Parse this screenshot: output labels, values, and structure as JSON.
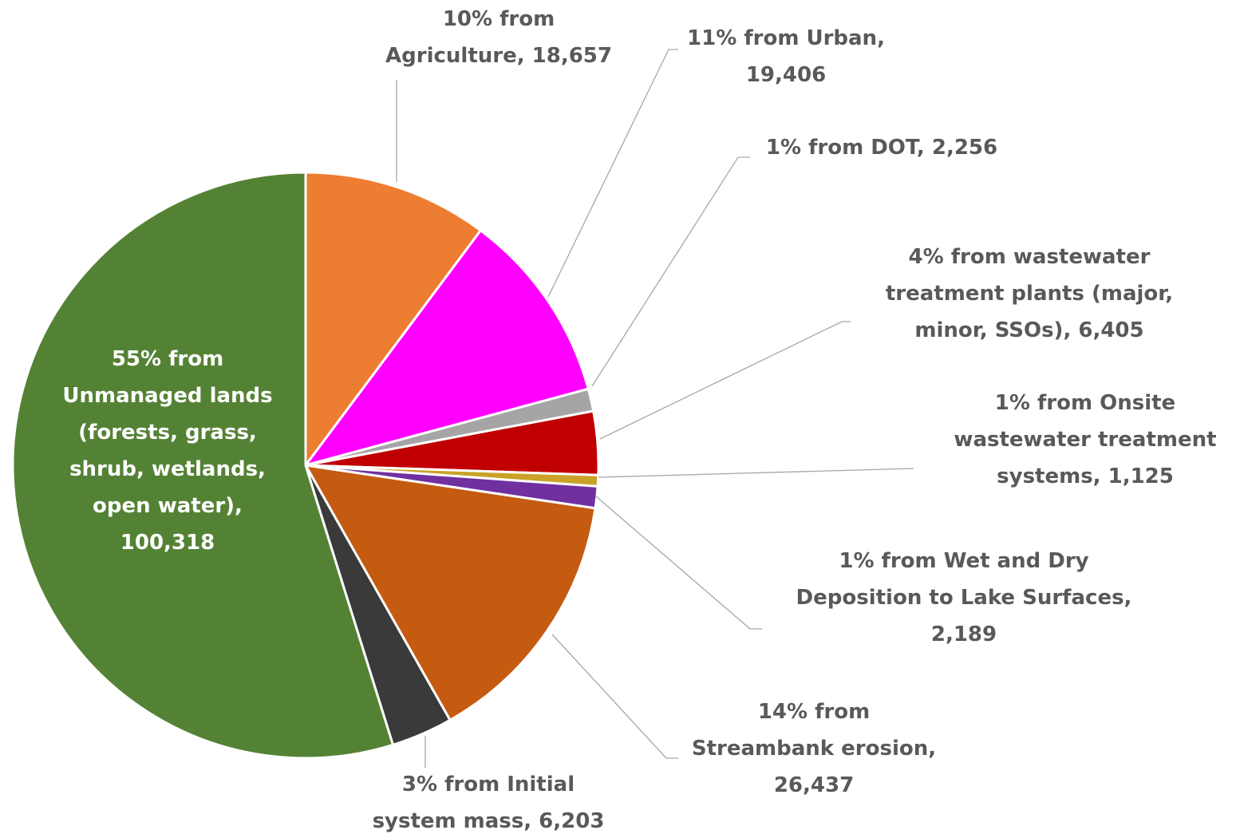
{
  "chart_data": {
    "type": "pie",
    "labels": [
      [
        "10% from",
        "Agriculture,  18,657"
      ],
      [
        "11% from Urban,",
        "19,406"
      ],
      [
        "1% from DOT,  2,256"
      ],
      [
        "4% from wastewater",
        "treatment plants (major,",
        "minor, SSOs),  6,405"
      ],
      [
        "1% from Onsite",
        "wastewater treatment",
        "systems,  1,125"
      ],
      [
        "1% from Wet and Dry",
        "Deposition to Lake Surfaces,",
        "2,189"
      ],
      [
        "14% from",
        "Streambank erosion,",
        "26,437"
      ],
      [
        "3% from Initial",
        "system mass,  6,203"
      ],
      [
        "55% from",
        "Unmanaged lands",
        "(forests, grass,",
        "shrub, wetlands,",
        "open water),",
        "100,318"
      ]
    ],
    "values": [
      18657,
      19406,
      2256,
      6405,
      1125,
      2189,
      26437,
      6203,
      100318
    ],
    "colors": [
      "#ed7d31",
      "#ff00ff",
      "#a5a5a5",
      "#c00000",
      "#c9a227",
      "#7030a0",
      "#c55a11",
      "#3a3a3a",
      "#548235"
    ]
  }
}
